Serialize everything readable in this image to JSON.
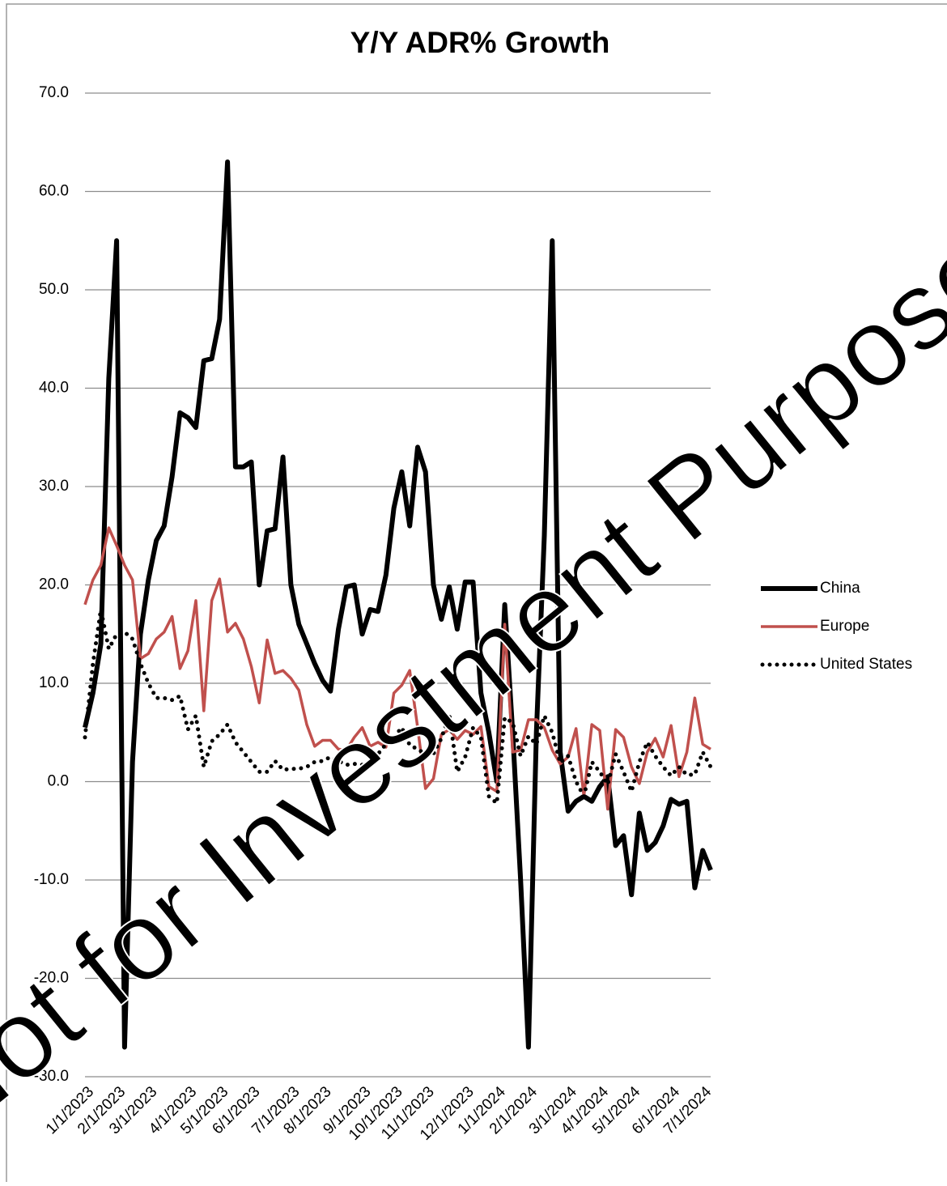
{
  "chart_data": {
    "type": "line",
    "title": "Y/Y ADR% Growth",
    "watermark": "Not for Investment Purposes",
    "categories": [
      "1/1/2023",
      null,
      null,
      null,
      "2/1/2023",
      null,
      null,
      null,
      "3/1/2023",
      null,
      null,
      null,
      null,
      "4/1/2023",
      null,
      null,
      null,
      "5/1/2023",
      null,
      null,
      null,
      "6/1/2023",
      null,
      null,
      null,
      null,
      "7/1/2023",
      null,
      null,
      null,
      "8/1/2023",
      null,
      null,
      null,
      null,
      "9/1/2023",
      null,
      null,
      null,
      "10/1/2023",
      null,
      null,
      null,
      "11/1/2023",
      null,
      null,
      null,
      null,
      "12/1/2023",
      null,
      null,
      null,
      "1/1/2024",
      null,
      null,
      null,
      "2/1/2024",
      null,
      null,
      null,
      null,
      "3/1/2024",
      null,
      null,
      null,
      "4/1/2024",
      null,
      null,
      null,
      "5/1/2024",
      null,
      null,
      null,
      null,
      "6/1/2024",
      null,
      null,
      null,
      "7/1/2024",
      null
    ],
    "series": [
      {
        "name": "China",
        "color": "#000000",
        "style": "solid",
        "width": 6,
        "values": [
          5.5,
          9,
          14,
          41,
          55,
          -27,
          2,
          15,
          20.5,
          24.5,
          26,
          31,
          37.5,
          37,
          36,
          42.8,
          43,
          47,
          63,
          32,
          32,
          32.5,
          20,
          25.5,
          25.7,
          33,
          20,
          16,
          14,
          12,
          10.3,
          9.2,
          15.5,
          19.8,
          20,
          15,
          17.5,
          17.3,
          21,
          27.8,
          31.5,
          26,
          34,
          31.5,
          20,
          16.5,
          19.8,
          15.5,
          20.3,
          20.3,
          9,
          5,
          0,
          18,
          5,
          -10,
          -27,
          5,
          25,
          55,
          3,
          -3,
          -2,
          -1.5,
          -2,
          -0.5,
          0.5,
          -6.5,
          -5.5,
          -11.5,
          -3.2,
          -7,
          -6.2,
          -4.5,
          -1.8,
          -2.3,
          -2,
          -10.8,
          -7,
          -9
        ]
      },
      {
        "name": "Europe",
        "color": "#c0504d",
        "style": "solid",
        "width": 3.5,
        "values": [
          18,
          20.5,
          22,
          25.8,
          24,
          22,
          20.5,
          12.5,
          13,
          14.5,
          15.2,
          16.8,
          11.5,
          13.3,
          18.4,
          7.2,
          18.4,
          20.6,
          15.2,
          16.1,
          14.5,
          11.7,
          8,
          14.4,
          11,
          11.3,
          10.5,
          9.3,
          5.8,
          3.6,
          4.2,
          4.2,
          3.3,
          3.2,
          4.5,
          5.5,
          3.6,
          4,
          3.5,
          9,
          9.8,
          11.3,
          5.5,
          -0.7,
          0.3,
          4.8,
          5.3,
          4.3,
          5.2,
          4.8,
          5.6,
          -0.5,
          -1,
          16,
          3,
          3.2,
          6.3,
          6.3,
          5.5,
          3.2,
          1.8,
          2.5,
          5.4,
          -1.5,
          5.8,
          5.2,
          -2.8,
          5.3,
          4.5,
          1.5,
          -0.2,
          3,
          4.4,
          2.5,
          5.7,
          0.5,
          3,
          8.5,
          3.8,
          3.3
        ]
      },
      {
        "name": "United States",
        "color": "#000000",
        "style": "dotted",
        "width": 5,
        "values": [
          4.5,
          12,
          17.5,
          13.5,
          15,
          15.2,
          14.5,
          12,
          10,
          8.5,
          8.5,
          8.3,
          8.7,
          5.3,
          6.7,
          1.5,
          4.1,
          4.8,
          5.8,
          4,
          3,
          2,
          1,
          1,
          2.1,
          1.2,
          1.3,
          1.3,
          1.5,
          2,
          2.1,
          2.5,
          2.1,
          1.7,
          1.8,
          1.7,
          2,
          2.8,
          3.8,
          4.5,
          5.5,
          3.7,
          3.3,
          2.8,
          2.8,
          4.4,
          6.8,
          1,
          2.5,
          5.5,
          4.5,
          -1.5,
          -2.2,
          6.5,
          6,
          2.6,
          4.6,
          3.8,
          6.7,
          5,
          1.9,
          2.6,
          0,
          -1.5,
          2,
          1,
          -0.3,
          2.8,
          1,
          -1,
          2,
          4,
          2.6,
          1.5,
          0.6,
          1.5,
          0.7,
          0.7,
          3,
          1.5
        ]
      }
    ],
    "ylim": [
      -30,
      70
    ],
    "yticks": [
      {
        "value": -30,
        "label": "-30.0"
      },
      {
        "value": -20,
        "label": "-20.0"
      },
      {
        "value": -10,
        "label": "-10.0"
      },
      {
        "value": 0,
        "label": "0.0"
      },
      {
        "value": 10,
        "label": "10.0"
      },
      {
        "value": 20,
        "label": "20.0"
      },
      {
        "value": 30,
        "label": "30.0"
      },
      {
        "value": 40,
        "label": "40.0"
      },
      {
        "value": 50,
        "label": "50.0"
      },
      {
        "value": 60,
        "label": "60.0"
      },
      {
        "value": 70,
        "label": "70.0"
      }
    ],
    "grid": true,
    "legend": "right"
  }
}
